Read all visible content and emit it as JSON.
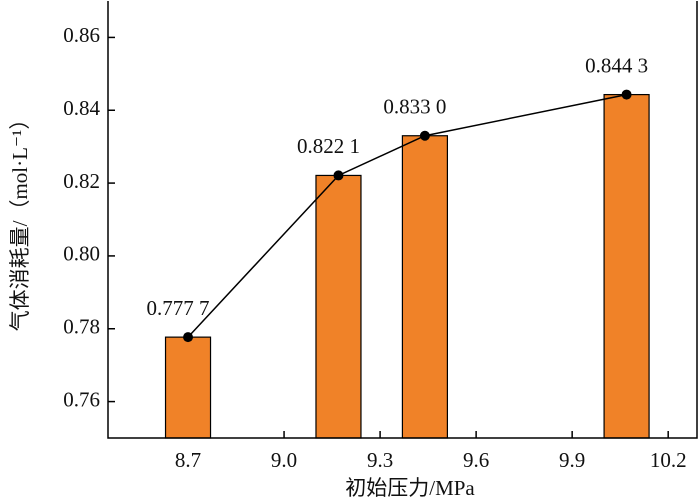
{
  "chart_data": {
    "type": "bar",
    "x": [
      8.7,
      9.17,
      9.44,
      10.07
    ],
    "values": [
      0.7777,
      0.8221,
      0.833,
      0.8443
    ],
    "value_labels": [
      "0.777 7",
      "0.822 1",
      "0.833 0",
      "0.844 3"
    ],
    "color": "#f08228",
    "line_color": "#000000",
    "overlay_line": true,
    "xlim": [
      8.45,
      10.29
    ],
    "xticks": [
      8.7,
      {
        "value": 9.0,
        "label": "9.0"
      },
      9.3,
      9.6,
      9.9,
      10.2
    ],
    "ylim": [
      0.75,
      0.87
    ],
    "yticks": [
      0.76,
      0.78,
      {
        "value": 0.8,
        "label": "0.80"
      },
      0.82,
      0.84,
      0.86
    ],
    "xlabel": "初始压力/MPa",
    "ylabel": "气体消耗量/（mol·L⁻¹）"
  }
}
